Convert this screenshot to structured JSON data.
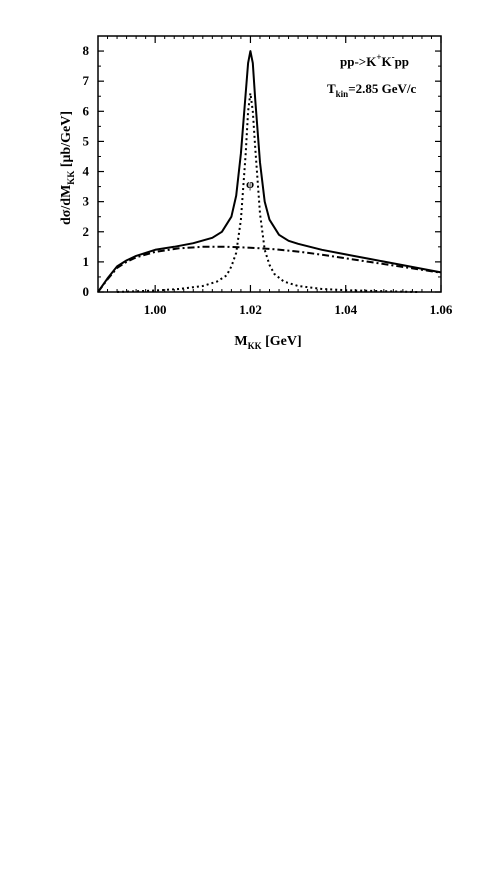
{
  "chart_data": {
    "type": "line",
    "title": "",
    "xlabel": {
      "main": "M",
      "sub": "KK",
      "rest": " [GeV]"
    },
    "ylabel": {
      "pre": "dσ/dM",
      "sub": "KK",
      "rest": "  [μb/GeV]"
    },
    "xlim": [
      0.988,
      1.06
    ],
    "ylim": [
      0,
      8.5
    ],
    "x_ticks": [
      1.0,
      1.02,
      1.04,
      1.06
    ],
    "x_tick_labels": [
      "1.00",
      "1.02",
      "1.04",
      "1.06"
    ],
    "y_ticks": [
      0,
      1,
      2,
      3,
      4,
      5,
      6,
      7,
      8
    ],
    "y_tick_labels": [
      "0",
      "1",
      "2",
      "3",
      "4",
      "5",
      "6",
      "7",
      "8"
    ],
    "annotations": {
      "reaction_pre": "pp->K",
      "reaction_sup1": "+",
      "reaction_mid": "K",
      "reaction_sup2": "-",
      "reaction_post": "pp",
      "energy_pre": "T",
      "energy_sub": "kin",
      "energy_post": "=2.85 GeV/c",
      "peak_label": "φ"
    },
    "grid": false,
    "legend": "none",
    "series": [
      {
        "style": "solid",
        "x": [
          0.988,
          0.99,
          0.992,
          0.994,
          0.996,
          1.0,
          1.004,
          1.008,
          1.012,
          1.014,
          1.016,
          1.017,
          1.018,
          1.019,
          1.0195,
          1.02,
          1.0205,
          1.021,
          1.022,
          1.023,
          1.024,
          1.026,
          1.028,
          1.03,
          1.035,
          1.04,
          1.045,
          1.05,
          1.055,
          1.06
        ],
        "y": [
          0.0,
          0.45,
          0.85,
          1.05,
          1.2,
          1.4,
          1.5,
          1.62,
          1.8,
          2.0,
          2.5,
          3.2,
          4.6,
          6.6,
          7.6,
          8.0,
          7.6,
          6.4,
          4.3,
          3.0,
          2.4,
          1.9,
          1.7,
          1.6,
          1.4,
          1.25,
          1.1,
          0.95,
          0.8,
          0.65
        ]
      },
      {
        "style": "dashdot",
        "x": [
          0.988,
          0.99,
          0.992,
          0.994,
          0.996,
          1.0,
          1.005,
          1.01,
          1.015,
          1.02,
          1.025,
          1.03,
          1.035,
          1.04,
          1.045,
          1.05,
          1.055,
          1.06
        ],
        "y": [
          0.0,
          0.42,
          0.8,
          1.0,
          1.15,
          1.33,
          1.45,
          1.5,
          1.5,
          1.47,
          1.42,
          1.34,
          1.24,
          1.12,
          1.0,
          0.88,
          0.76,
          0.64
        ]
      },
      {
        "style": "dotted",
        "x": [
          0.992,
          1.0,
          1.005,
          1.01,
          1.013,
          1.015,
          1.016,
          1.017,
          1.018,
          1.019,
          1.0195,
          1.02,
          1.0205,
          1.021,
          1.022,
          1.023,
          1.024,
          1.025,
          1.027,
          1.03,
          1.035,
          1.04,
          1.045,
          1.05,
          1.055
        ],
        "y": [
          0.0,
          0.05,
          0.1,
          0.2,
          0.35,
          0.55,
          0.85,
          1.3,
          2.4,
          4.6,
          6.0,
          6.6,
          6.0,
          4.8,
          2.6,
          1.4,
          0.9,
          0.6,
          0.35,
          0.2,
          0.1,
          0.06,
          0.04,
          0.02,
          0.0
        ]
      }
    ]
  }
}
